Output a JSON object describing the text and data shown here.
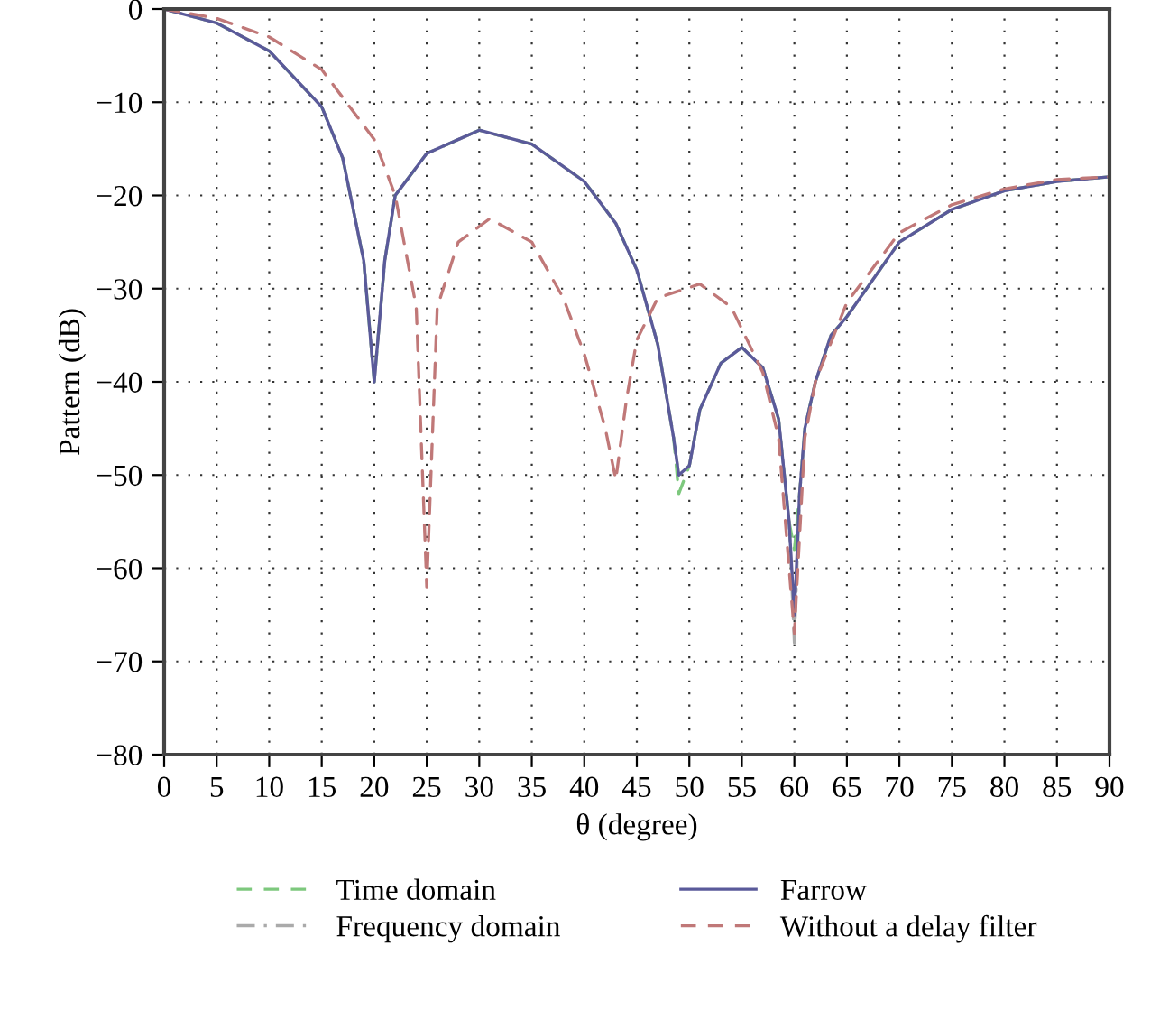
{
  "chart_data": {
    "type": "line",
    "xlabel": "θ (degree)",
    "ylabel": "Pattern (dB)",
    "xlim": [
      0,
      90
    ],
    "ylim": [
      -80,
      0
    ],
    "xticks": [
      0,
      5,
      10,
      15,
      20,
      25,
      30,
      35,
      40,
      45,
      50,
      55,
      60,
      65,
      70,
      75,
      80,
      85,
      90
    ],
    "yticks": [
      -80,
      -70,
      -60,
      -50,
      -40,
      -30,
      -20,
      -10,
      0
    ],
    "grid": true,
    "legend": "bottom",
    "series": [
      {
        "name": "Time domain",
        "color": "#7dc87d",
        "line_style": "dashed",
        "x": [
          0,
          5,
          10,
          15,
          17,
          19,
          20,
          21,
          22,
          25,
          30,
          35,
          40,
          43,
          45,
          47,
          48.5,
          49,
          50,
          51,
          53,
          55,
          57,
          58.5,
          59.5,
          60,
          60.5,
          61,
          62,
          63.5,
          65,
          70,
          75,
          80,
          85,
          90
        ],
        "values": [
          0,
          -1.5,
          -4.5,
          -10.5,
          -16,
          -27,
          -40,
          -27,
          -20,
          -15.5,
          -13,
          -14.5,
          -18.5,
          -23,
          -28,
          -36,
          -46,
          -52,
          -49,
          -43,
          -38,
          -36.3,
          -38.5,
          -44,
          -55,
          -58,
          -52,
          -45,
          -40,
          -35,
          -33,
          -25,
          -21.5,
          -19.5,
          -18.5,
          -18
        ]
      },
      {
        "name": "Frequency domain",
        "color": "#aaaaaa",
        "line_style": "dashdot",
        "x": [
          0,
          5,
          10,
          15,
          17,
          19,
          20,
          21,
          22,
          25,
          30,
          35,
          40,
          43,
          45,
          47,
          48.5,
          49,
          50,
          51,
          53,
          55,
          57,
          58.5,
          59.5,
          60,
          60.5,
          61,
          62,
          63.5,
          65,
          70,
          75,
          80,
          85,
          90
        ],
        "values": [
          0,
          -1.5,
          -4.5,
          -10.5,
          -16,
          -27,
          -40,
          -27,
          -20,
          -15.5,
          -13,
          -14.5,
          -18.5,
          -23,
          -28,
          -36,
          -46,
          -50,
          -49,
          -43,
          -38,
          -36.3,
          -38.5,
          -44,
          -55,
          -68,
          -52,
          -45,
          -40,
          -35,
          -33,
          -25,
          -21.5,
          -19.5,
          -18.5,
          -18
        ]
      },
      {
        "name": "Farrow",
        "color": "#5a5a9a",
        "line_style": "solid",
        "x": [
          0,
          5,
          10,
          15,
          17,
          19,
          20,
          21,
          22,
          25,
          30,
          35,
          40,
          43,
          45,
          47,
          48.5,
          49,
          50,
          51,
          53,
          55,
          57,
          58.5,
          59.5,
          60,
          60.5,
          61,
          62,
          63.5,
          65,
          70,
          75,
          80,
          85,
          90
        ],
        "values": [
          0,
          -1.5,
          -4.5,
          -10.5,
          -16,
          -27,
          -40,
          -27,
          -20,
          -15.5,
          -13,
          -14.5,
          -18.5,
          -23,
          -28,
          -36,
          -46,
          -50,
          -49,
          -43,
          -38,
          -36.3,
          -38.5,
          -44,
          -55,
          -65,
          -52,
          -45,
          -40,
          -35,
          -33,
          -25,
          -21.5,
          -19.5,
          -18.5,
          -18
        ]
      },
      {
        "name": "Without a delay filter",
        "color": "#c07878",
        "line_style": "dashed",
        "x": [
          0,
          5,
          10,
          15,
          20,
          22,
          24,
          25,
          26,
          28,
          31,
          35,
          38,
          40,
          42,
          43,
          44,
          45,
          47,
          51,
          54,
          57,
          58.5,
          60,
          61,
          62,
          65,
          70,
          75,
          80,
          85,
          90
        ],
        "values": [
          0,
          -1,
          -3,
          -6.5,
          -14,
          -20,
          -32,
          -62,
          -32,
          -25,
          -22.5,
          -25,
          -31,
          -37,
          -45,
          -50.5,
          -42,
          -35.5,
          -31,
          -29.5,
          -32,
          -39,
          -46,
          -67,
          -46,
          -40,
          -31.5,
          -24,
          -21,
          -19.3,
          -18.3,
          -18
        ]
      }
    ]
  }
}
